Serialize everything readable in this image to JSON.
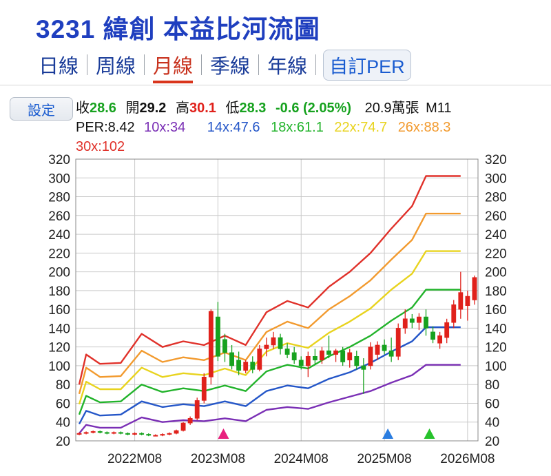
{
  "header": {
    "title": "3231 緯創 本益比河流圖",
    "tabs": [
      {
        "label": "日線",
        "active": false
      },
      {
        "label": "周線",
        "active": false
      },
      {
        "label": "月線",
        "active": true
      },
      {
        "label": "季線",
        "active": false
      },
      {
        "label": "年線",
        "active": false
      }
    ],
    "custom_button": "自訂PER"
  },
  "toolbar": {
    "settings_label": "設定"
  },
  "quote": {
    "close_label": "收",
    "close": "28.6",
    "open_label": "開",
    "open": "29.2",
    "high_label": "高",
    "high": "30.1",
    "low_label": "低",
    "low": "28.3",
    "change": "-0.6 (2.05%)",
    "volume": "20.9萬張",
    "period": "M11"
  },
  "per": {
    "current": "PER:8.42",
    "levels": [
      {
        "label": "10x:34",
        "color": "#7a2fb5"
      },
      {
        "label": "14x:47.6",
        "color": "#2456c8"
      },
      {
        "label": "18x:61.1",
        "color": "#22b32b"
      },
      {
        "label": "22x:74.7",
        "color": "#e8d31e"
      },
      {
        "label": "26x:88.3",
        "color": "#f29a2e"
      },
      {
        "label": "30x:102",
        "color": "#e0312a"
      }
    ]
  },
  "chart_data": {
    "type": "line",
    "y_ticks": [
      "20",
      "40",
      "60",
      "80",
      "100",
      "120",
      "140",
      "160",
      "180",
      "200",
      "220",
      "240",
      "260",
      "280",
      "300",
      "320"
    ],
    "ylim": [
      20,
      320
    ],
    "x_ticks": [
      {
        "label": "2022M08",
        "t": 8
      },
      {
        "label": "2023M08",
        "t": 20
      },
      {
        "label": "2024M08",
        "t": 32
      },
      {
        "label": "2025M08",
        "t": 44
      },
      {
        "label": "2026M08",
        "t": 56
      }
    ],
    "x_range": [
      -0.5,
      57.5
    ],
    "grid": true,
    "bands": [
      {
        "name": "30x",
        "color": "#e0312a",
        "points": [
          [
            0,
            80
          ],
          [
            1,
            112
          ],
          [
            3,
            102
          ],
          [
            6,
            103
          ],
          [
            9,
            134
          ],
          [
            12,
            120
          ],
          [
            15,
            126
          ],
          [
            18,
            122
          ],
          [
            21,
            132
          ],
          [
            24,
            122
          ],
          [
            27,
            157
          ],
          [
            30,
            169
          ],
          [
            33,
            162
          ],
          [
            36,
            184
          ],
          [
            39,
            200
          ],
          [
            42,
            220
          ],
          [
            45,
            246
          ],
          [
            48,
            270
          ],
          [
            50,
            302
          ],
          [
            53,
            302
          ],
          [
            55,
            302
          ]
        ]
      },
      {
        "name": "26x",
        "color": "#f29a2e",
        "points": [
          [
            0,
            70
          ],
          [
            1,
            98
          ],
          [
            3,
            88
          ],
          [
            6,
            89
          ],
          [
            9,
            116
          ],
          [
            12,
            104
          ],
          [
            15,
            109
          ],
          [
            18,
            106
          ],
          [
            21,
            114
          ],
          [
            24,
            106
          ],
          [
            27,
            136
          ],
          [
            30,
            147
          ],
          [
            33,
            140
          ],
          [
            36,
            160
          ],
          [
            39,
            174
          ],
          [
            42,
            191
          ],
          [
            45,
            213
          ],
          [
            48,
            234
          ],
          [
            50,
            262
          ],
          [
            53,
            262
          ],
          [
            55,
            262
          ]
        ]
      },
      {
        "name": "22x",
        "color": "#e8d31e",
        "points": [
          [
            0,
            59
          ],
          [
            1,
            83
          ],
          [
            3,
            75
          ],
          [
            6,
            75
          ],
          [
            9,
            98
          ],
          [
            12,
            88
          ],
          [
            15,
            92
          ],
          [
            18,
            90
          ],
          [
            21,
            97
          ],
          [
            24,
            90
          ],
          [
            27,
            115
          ],
          [
            30,
            124
          ],
          [
            33,
            119
          ],
          [
            36,
            135
          ],
          [
            39,
            147
          ],
          [
            42,
            161
          ],
          [
            45,
            181
          ],
          [
            48,
            198
          ],
          [
            50,
            222
          ],
          [
            53,
            222
          ],
          [
            55,
            222
          ]
        ]
      },
      {
        "name": "18x",
        "color": "#22b32b",
        "points": [
          [
            0,
            48
          ],
          [
            1,
            68
          ],
          [
            3,
            61
          ],
          [
            6,
            62
          ],
          [
            9,
            80
          ],
          [
            12,
            72
          ],
          [
            15,
            76
          ],
          [
            18,
            73
          ],
          [
            21,
            79
          ],
          [
            24,
            73
          ],
          [
            27,
            94
          ],
          [
            30,
            101
          ],
          [
            33,
            97
          ],
          [
            36,
            110
          ],
          [
            39,
            120
          ],
          [
            42,
            132
          ],
          [
            45,
            148
          ],
          [
            48,
            162
          ],
          [
            50,
            181
          ],
          [
            53,
            181
          ],
          [
            55,
            181
          ]
        ]
      },
      {
        "name": "14x",
        "color": "#2456c8",
        "points": [
          [
            0,
            38
          ],
          [
            1,
            52
          ],
          [
            3,
            47
          ],
          [
            6,
            48
          ],
          [
            9,
            62
          ],
          [
            12,
            56
          ],
          [
            15,
            59
          ],
          [
            18,
            57
          ],
          [
            21,
            62
          ],
          [
            24,
            57
          ],
          [
            27,
            73
          ],
          [
            30,
            79
          ],
          [
            33,
            76
          ],
          [
            36,
            86
          ],
          [
            39,
            93
          ],
          [
            42,
            103
          ],
          [
            45,
            115
          ],
          [
            48,
            126
          ],
          [
            50,
            141
          ],
          [
            53,
            141
          ],
          [
            55,
            141
          ]
        ]
      },
      {
        "name": "10x",
        "color": "#7a2fb5",
        "points": [
          [
            0,
            28
          ],
          [
            1,
            37
          ],
          [
            3,
            34
          ],
          [
            6,
            34
          ],
          [
            9,
            45
          ],
          [
            12,
            40
          ],
          [
            15,
            42
          ],
          [
            18,
            41
          ],
          [
            21,
            44
          ],
          [
            24,
            41
          ],
          [
            27,
            53
          ],
          [
            30,
            56
          ],
          [
            33,
            54
          ],
          [
            36,
            61
          ],
          [
            39,
            67
          ],
          [
            42,
            73
          ],
          [
            45,
            82
          ],
          [
            48,
            90
          ],
          [
            50,
            101
          ],
          [
            53,
            101
          ],
          [
            55,
            101
          ]
        ]
      }
    ],
    "candles": [
      {
        "t": 0,
        "o": 27,
        "h": 29,
        "l": 26,
        "c": 28
      },
      {
        "t": 1,
        "o": 28,
        "h": 30,
        "l": 27,
        "c": 29
      },
      {
        "t": 2,
        "o": 29,
        "h": 31,
        "l": 28,
        "c": 30
      },
      {
        "t": 3,
        "o": 30,
        "h": 31,
        "l": 28,
        "c": 29
      },
      {
        "t": 4,
        "o": 29,
        "h": 30,
        "l": 27,
        "c": 28
      },
      {
        "t": 5,
        "o": 28,
        "h": 30,
        "l": 27,
        "c": 29
      },
      {
        "t": 6,
        "o": 29,
        "h": 30,
        "l": 27,
        "c": 28
      },
      {
        "t": 7,
        "o": 28,
        "h": 29,
        "l": 26,
        "c": 27
      },
      {
        "t": 8,
        "o": 27,
        "h": 29,
        "l": 26,
        "c": 28
      },
      {
        "t": 9,
        "o": 28,
        "h": 29,
        "l": 26,
        "c": 27
      },
      {
        "t": 10,
        "o": 27,
        "h": 28,
        "l": 25,
        "c": 26
      },
      {
        "t": 11,
        "o": 26,
        "h": 27,
        "l": 25,
        "c": 26
      },
      {
        "t": 12,
        "o": 26,
        "h": 28,
        "l": 25,
        "c": 27
      },
      {
        "t": 13,
        "o": 27,
        "h": 29,
        "l": 26,
        "c": 28
      },
      {
        "t": 14,
        "o": 28,
        "h": 32,
        "l": 27,
        "c": 31
      },
      {
        "t": 15,
        "o": 31,
        "h": 40,
        "l": 30,
        "c": 39
      },
      {
        "t": 16,
        "o": 39,
        "h": 46,
        "l": 37,
        "c": 44
      },
      {
        "t": 17,
        "o": 44,
        "h": 66,
        "l": 42,
        "c": 63
      },
      {
        "t": 18,
        "o": 63,
        "h": 92,
        "l": 60,
        "c": 88
      },
      {
        "t": 19,
        "o": 88,
        "h": 160,
        "l": 80,
        "c": 158
      },
      {
        "t": 20,
        "o": 152,
        "h": 168,
        "l": 105,
        "c": 110
      },
      {
        "t": 21,
        "o": 128,
        "h": 134,
        "l": 104,
        "c": 114
      },
      {
        "t": 22,
        "o": 114,
        "h": 122,
        "l": 96,
        "c": 100
      },
      {
        "t": 23,
        "o": 106,
        "h": 115,
        "l": 90,
        "c": 95
      },
      {
        "t": 24,
        "o": 95,
        "h": 106,
        "l": 92,
        "c": 104
      },
      {
        "t": 25,
        "o": 104,
        "h": 110,
        "l": 92,
        "c": 96
      },
      {
        "t": 26,
        "o": 96,
        "h": 122,
        "l": 94,
        "c": 118
      },
      {
        "t": 27,
        "o": 118,
        "h": 130,
        "l": 110,
        "c": 122
      },
      {
        "t": 28,
        "o": 122,
        "h": 136,
        "l": 118,
        "c": 130
      },
      {
        "t": 29,
        "o": 130,
        "h": 134,
        "l": 112,
        "c": 118
      },
      {
        "t": 30,
        "o": 118,
        "h": 124,
        "l": 108,
        "c": 112
      },
      {
        "t": 31,
        "o": 114,
        "h": 120,
        "l": 102,
        "c": 106
      },
      {
        "t": 32,
        "o": 106,
        "h": 110,
        "l": 96,
        "c": 100
      },
      {
        "t": 33,
        "o": 100,
        "h": 115,
        "l": 88,
        "c": 110
      },
      {
        "t": 34,
        "o": 110,
        "h": 118,
        "l": 102,
        "c": 106
      },
      {
        "t": 35,
        "o": 106,
        "h": 120,
        "l": 102,
        "c": 116
      },
      {
        "t": 36,
        "o": 116,
        "h": 132,
        "l": 108,
        "c": 112
      },
      {
        "t": 37,
        "o": 112,
        "h": 118,
        "l": 104,
        "c": 116
      },
      {
        "t": 38,
        "o": 116,
        "h": 120,
        "l": 100,
        "c": 104
      },
      {
        "t": 39,
        "o": 106,
        "h": 118,
        "l": 98,
        "c": 114
      },
      {
        "t": 40,
        "o": 110,
        "h": 116,
        "l": 96,
        "c": 100
      },
      {
        "t": 41,
        "o": 100,
        "h": 108,
        "l": 70,
        "c": 96
      },
      {
        "t": 42,
        "o": 100,
        "h": 125,
        "l": 96,
        "c": 120
      },
      {
        "t": 43,
        "o": 112,
        "h": 126,
        "l": 106,
        "c": 122
      },
      {
        "t": 44,
        "o": 122,
        "h": 128,
        "l": 112,
        "c": 116
      },
      {
        "t": 45,
        "o": 116,
        "h": 130,
        "l": 104,
        "c": 110
      },
      {
        "t": 46,
        "o": 110,
        "h": 145,
        "l": 106,
        "c": 140
      },
      {
        "t": 47,
        "o": 140,
        "h": 160,
        "l": 134,
        "c": 150
      },
      {
        "t": 48,
        "o": 150,
        "h": 155,
        "l": 140,
        "c": 146
      },
      {
        "t": 49,
        "o": 146,
        "h": 156,
        "l": 138,
        "c": 152
      },
      {
        "t": 50,
        "o": 152,
        "h": 160,
        "l": 132,
        "c": 140
      },
      {
        "t": 51,
        "o": 136,
        "h": 142,
        "l": 124,
        "c": 128
      },
      {
        "t": 52,
        "o": 124,
        "h": 136,
        "l": 118,
        "c": 132
      },
      {
        "t": 53,
        "o": 130,
        "h": 150,
        "l": 124,
        "c": 146
      },
      {
        "t": 54,
        "o": 146,
        "h": 170,
        "l": 140,
        "c": 165
      },
      {
        "t": 55,
        "o": 160,
        "h": 200,
        "l": 150,
        "c": 178
      },
      {
        "t": 56,
        "o": 164,
        "h": 180,
        "l": 148,
        "c": 174
      },
      {
        "t": 57,
        "o": 170,
        "h": 196,
        "l": 165,
        "c": 194
      }
    ],
    "markers": [
      {
        "t": 20.8,
        "color": "#e8217e"
      },
      {
        "t": 44.5,
        "color": "#2b7de0"
      },
      {
        "t": 50.5,
        "color": "#27c22c"
      }
    ]
  }
}
